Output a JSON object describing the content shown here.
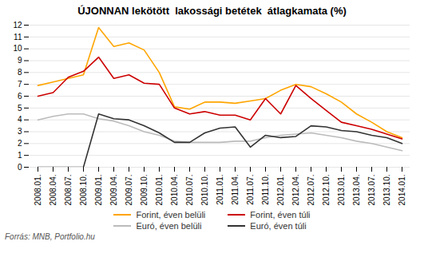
{
  "chart_data": {
    "type": "line",
    "title": "ÚJONNAN lekötött  lakossági betétek  átlagkamata (%)",
    "source": "Forrás: MNB, Portfolio.hu",
    "categories": [
      "2008.01.",
      "2008.04.",
      "2008.07.",
      "2008.10.",
      "2009.01.",
      "2009.04.",
      "2009.07.",
      "2009.10.",
      "2010.01.",
      "2010.04.",
      "2010.07.",
      "2010.10.",
      "2011.01.",
      "2011.04.",
      "2011.07.",
      "2011.10.",
      "2012.01.",
      "2012.04.",
      "2012.07.",
      "2012.10.",
      "2013.01.",
      "2013.04.",
      "2013.07.",
      "2013.10.",
      "2014.01."
    ],
    "series": [
      {
        "name": "Forint, éven belüli",
        "color": "#FFA500",
        "values": [
          6.9,
          7.2,
          7.5,
          7.8,
          11.8,
          10.2,
          10.5,
          9.9,
          8.0,
          5.1,
          4.9,
          5.5,
          5.5,
          5.4,
          5.6,
          5.8,
          6.5,
          7.0,
          6.8,
          6.2,
          5.5,
          4.5,
          3.8,
          3.0,
          2.5
        ]
      },
      {
        "name": "Forint, éven túli",
        "color": "#CC0000",
        "values": [
          6.0,
          6.3,
          7.6,
          8.1,
          9.3,
          7.5,
          7.8,
          7.1,
          7.0,
          5.0,
          4.5,
          4.7,
          4.4,
          4.4,
          4.0,
          5.8,
          4.5,
          6.9,
          5.8,
          4.8,
          3.8,
          3.5,
          3.2,
          2.8,
          2.4
        ]
      },
      {
        "name": "Euró, éven belüli",
        "color": "#bbbbbb",
        "values": [
          4.0,
          4.3,
          4.5,
          4.5,
          4.1,
          3.9,
          3.5,
          3.0,
          2.7,
          2.2,
          2.1,
          2.1,
          2.1,
          2.2,
          2.2,
          2.5,
          2.7,
          2.8,
          2.9,
          2.7,
          2.5,
          2.2,
          2.0,
          1.7,
          1.4
        ]
      },
      {
        "name": "Euró, éven túli",
        "color": "#333333",
        "values": [
          0.0,
          0.0,
          0.0,
          0.0,
          4.5,
          4.1,
          4.0,
          3.5,
          2.9,
          2.1,
          2.1,
          2.9,
          3.3,
          3.4,
          1.7,
          2.7,
          2.5,
          2.6,
          3.5,
          3.4,
          3.1,
          3.0,
          2.7,
          2.5,
          2.0
        ]
      }
    ],
    "ylim": [
      0,
      12
    ],
    "yticks": [
      0,
      1,
      2,
      3,
      4,
      5,
      6,
      7,
      8,
      9,
      10,
      11,
      12
    ],
    "grid": true,
    "legend": "bottom"
  }
}
